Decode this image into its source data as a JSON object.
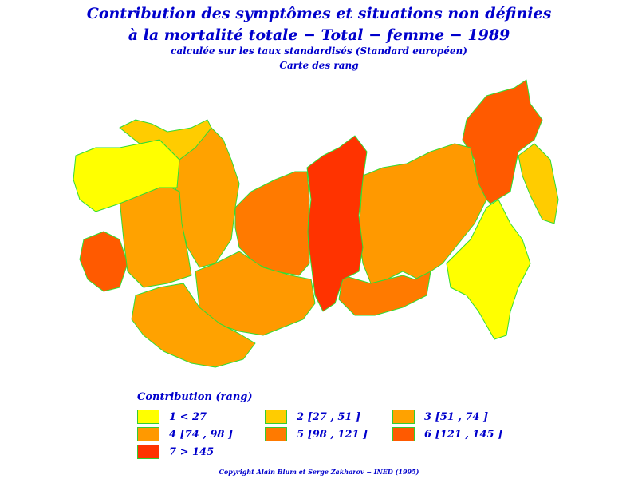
{
  "title": {
    "line1": "Contribution des symptômes et situations non définies",
    "line2": "à la mortalité totale − Total − femme − 1989",
    "line3": "calculée sur les taux standardisés (Standard européen)",
    "line4": "Carte des rang"
  },
  "colors": {
    "c1": "#ffff00",
    "c2": "#ffcc00",
    "c3": "#ffa200",
    "c4": "#ff9900",
    "c5": "#ff7a00",
    "c6": "#ff5a00",
    "c7": "#ff3300",
    "border": "#33dd33"
  },
  "legend": {
    "title": "Contribution (rang)",
    "items": [
      {
        "class": 1,
        "label": "1  <  27",
        "color": "#ffff00"
      },
      {
        "class": 2,
        "label": "2 [27 ,  51 ]",
        "color": "#ffcc00"
      },
      {
        "class": 3,
        "label": "3 [51 ,  74 ]",
        "color": "#ffa200"
      },
      {
        "class": 4,
        "label": "4 [74 ,  98 ]",
        "color": "#ff9900"
      },
      {
        "class": 5,
        "label": "5 [98 ,  121 ]",
        "color": "#ff7a00"
      },
      {
        "class": 6,
        "label": "6 [121 ,  145 ]",
        "color": "#ff5a00"
      },
      {
        "class": 7,
        "label": "7  >  145",
        "color": "#ff3300"
      }
    ]
  },
  "map_regions": [
    {
      "name": "west-north",
      "class": 2
    },
    {
      "name": "west-central",
      "class": 1
    },
    {
      "name": "volga",
      "class": 3
    },
    {
      "name": "caucasus",
      "class": 6
    },
    {
      "name": "urals",
      "class": 3
    },
    {
      "name": "kazakhstan",
      "class": 4
    },
    {
      "name": "central-asia",
      "class": 3
    },
    {
      "name": "west-siberia",
      "class": 5
    },
    {
      "name": "krasnoyarsk",
      "class": 7
    },
    {
      "name": "yakutia",
      "class": 4
    },
    {
      "name": "chukotka",
      "class": 6
    },
    {
      "name": "far-east-south",
      "class": 1
    },
    {
      "name": "kamchatka",
      "class": 2
    },
    {
      "name": "irkutsk",
      "class": 5
    }
  ],
  "copyright": "Copyright Alain Blum et Serge Zakharov − INED (1995)"
}
